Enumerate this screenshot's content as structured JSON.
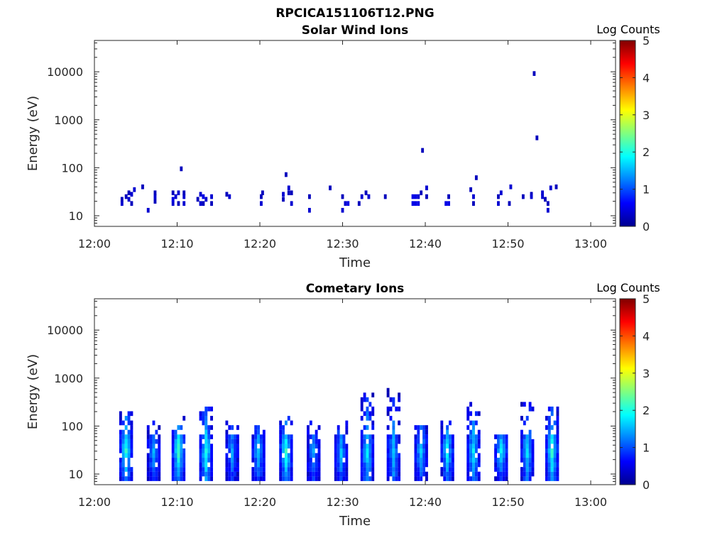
{
  "figure": {
    "main_title": "RPCICA151106T12.PNG"
  },
  "chart_data": [
    {
      "type": "heatmap",
      "title": "Solar Wind Ions",
      "xlabel": "Time",
      "ylabel": "Energy (eV)",
      "x_ticks": [
        "12:00",
        "12:10",
        "12:20",
        "12:30",
        "12:40",
        "12:50",
        "13:00"
      ],
      "y_ticks": [
        "10",
        "100",
        "1000",
        "10000"
      ],
      "y_scale": "log",
      "xlim": [
        "12:00",
        "13:03"
      ],
      "ylim": [
        6,
        45000
      ],
      "colorbar": {
        "label": "Log Counts",
        "ticks": [
          "0",
          "1",
          "2",
          "3",
          "4",
          "5"
        ],
        "range": [
          0,
          5
        ],
        "colormap": "jet"
      },
      "grid": false,
      "cells": [
        [
          "12:03:10",
          18,
          0.4
        ],
        [
          "12:03:10",
          22,
          0.3
        ],
        [
          "12:03:40",
          25,
          0.3
        ],
        [
          "12:04:00",
          22,
          0.4
        ],
        [
          "12:04:00",
          30,
          0.3
        ],
        [
          "12:04:20",
          28,
          0.4
        ],
        [
          "12:04:20",
          18,
          0.3
        ],
        [
          "12:04:40",
          35,
          0.4
        ],
        [
          "12:05:40",
          40,
          0.3
        ],
        [
          "12:06:20",
          13,
          0.4
        ],
        [
          "12:07:10",
          20,
          0.3
        ],
        [
          "12:07:10",
          25,
          0.4
        ],
        [
          "12:07:10",
          30,
          0.3
        ],
        [
          "12:09:20",
          18,
          0.4
        ],
        [
          "12:09:20",
          22,
          0.5
        ],
        [
          "12:09:20",
          30,
          0.3
        ],
        [
          "12:09:40",
          25,
          0.4
        ],
        [
          "12:10:00",
          18,
          0.3
        ],
        [
          "12:10:00",
          30,
          0.4
        ],
        [
          "12:10:20",
          95,
          0.3
        ],
        [
          "12:10:40",
          18,
          0.4
        ],
        [
          "12:10:40",
          25,
          0.4
        ],
        [
          "12:10:40",
          30,
          0.3
        ],
        [
          "12:12:20",
          22,
          0.3
        ],
        [
          "12:12:40",
          18,
          0.4
        ],
        [
          "12:12:40",
          28,
          0.4
        ],
        [
          "12:13:00",
          25,
          0.5
        ],
        [
          "12:13:00",
          18,
          0.3
        ],
        [
          "12:13:20",
          22,
          0.4
        ],
        [
          "12:14:00",
          18,
          0.3
        ],
        [
          "12:14:00",
          25,
          0.4
        ],
        [
          "12:15:50",
          28,
          0.3
        ],
        [
          "12:16:10",
          25,
          0.4
        ],
        [
          "12:20:00",
          18,
          0.4
        ],
        [
          "12:20:00",
          25,
          0.3
        ],
        [
          "12:20:10",
          30,
          0.3
        ],
        [
          "12:22:40",
          22,
          0.3
        ],
        [
          "12:22:40",
          28,
          0.4
        ],
        [
          "12:23:00",
          72,
          0.3
        ],
        [
          "12:23:20",
          30,
          0.3
        ],
        [
          "12:23:20",
          38,
          0.4
        ],
        [
          "12:23:40",
          18,
          0.4
        ],
        [
          "12:23:40",
          30,
          0.3
        ],
        [
          "12:25:50",
          13,
          0.4
        ],
        [
          "12:25:50",
          25,
          0.3
        ],
        [
          "12:28:20",
          38,
          0.3
        ],
        [
          "12:29:50",
          13,
          0.4
        ],
        [
          "12:29:50",
          25,
          0.3
        ],
        [
          "12:30:10",
          18,
          0.4
        ],
        [
          "12:30:30",
          18,
          0.5
        ],
        [
          "12:31:50",
          18,
          0.3
        ],
        [
          "12:32:10",
          25,
          0.4
        ],
        [
          "12:32:40",
          30,
          0.3
        ],
        [
          "12:33:00",
          25,
          0.4
        ],
        [
          "12:35:00",
          25,
          0.3
        ],
        [
          "12:38:20",
          18,
          0.5
        ],
        [
          "12:38:20",
          25,
          0.5
        ],
        [
          "12:38:40",
          18,
          0.5
        ],
        [
          "12:38:40",
          25,
          0.5
        ],
        [
          "12:39:00",
          18,
          0.5
        ],
        [
          "12:39:00",
          25,
          0.4
        ],
        [
          "12:39:20",
          30,
          0.3
        ],
        [
          "12:39:30",
          230,
          0.3
        ],
        [
          "12:40:00",
          38,
          0.4
        ],
        [
          "12:40:00",
          25,
          0.3
        ],
        [
          "12:42:20",
          18,
          0.5
        ],
        [
          "12:42:40",
          18,
          0.5
        ],
        [
          "12:42:40",
          25,
          0.3
        ],
        [
          "12:45:20",
          35,
          0.3
        ],
        [
          "12:45:40",
          25,
          0.4
        ],
        [
          "12:45:40",
          18,
          0.3
        ],
        [
          "12:46:00",
          62,
          0.3
        ],
        [
          "12:48:40",
          18,
          0.4
        ],
        [
          "12:48:40",
          25,
          0.3
        ],
        [
          "12:49:00",
          30,
          0.4
        ],
        [
          "12:50:00",
          18,
          0.3
        ],
        [
          "12:50:10",
          40,
          0.4
        ],
        [
          "12:51:40",
          25,
          0.3
        ],
        [
          "12:52:40",
          28,
          0.3
        ],
        [
          "12:52:40",
          25,
          0.4
        ],
        [
          "12:53:00",
          9200,
          0.3
        ],
        [
          "12:53:20",
          420,
          0.3
        ],
        [
          "12:54:00",
          25,
          0.4
        ],
        [
          "12:54:00",
          30,
          0.4
        ],
        [
          "12:54:20",
          22,
          0.3
        ],
        [
          "12:54:40",
          13,
          0.4
        ],
        [
          "12:54:40",
          18,
          0.3
        ],
        [
          "12:55:00",
          38,
          0.4
        ],
        [
          "12:55:40",
          40,
          0.3
        ]
      ]
    },
    {
      "type": "heatmap",
      "title": "Cometary Ions",
      "xlabel": "Time",
      "ylabel": "Energy (eV)",
      "x_ticks": [
        "12:00",
        "12:10",
        "12:20",
        "12:30",
        "12:40",
        "12:50",
        "13:00"
      ],
      "y_ticks": [
        "10",
        "100",
        "1000",
        "10000"
      ],
      "y_scale": "log",
      "xlim": [
        "12:00",
        "13:03"
      ],
      "ylim": [
        6,
        45000
      ],
      "colorbar": {
        "label": "Log Counts",
        "ticks": [
          "0",
          "1",
          "2",
          "3",
          "4",
          "5"
        ],
        "range": [
          0,
          5
        ],
        "colormap": "jet"
      },
      "grid": false,
      "bursts": [
        {
          "start": "12:03:00",
          "high_eV": 220,
          "peak": 1.9
        },
        {
          "start": "12:06:20",
          "high_eV": 120,
          "peak": 1.3
        },
        {
          "start": "12:09:20",
          "high_eV": 180,
          "peak": 2.0
        },
        {
          "start": "12:12:40",
          "high_eV": 300,
          "peak": 1.8
        },
        {
          "start": "12:15:50",
          "high_eV": 140,
          "peak": 1.2
        },
        {
          "start": "12:19:00",
          "high_eV": 110,
          "peak": 1.5
        },
        {
          "start": "12:22:20",
          "high_eV": 170,
          "peak": 1.9
        },
        {
          "start": "12:25:40",
          "high_eV": 130,
          "peak": 1.3
        },
        {
          "start": "12:29:00",
          "high_eV": 140,
          "peak": 1.4
        },
        {
          "start": "12:32:10",
          "high_eV": 500,
          "peak": 1.6
        },
        {
          "start": "12:35:20",
          "high_eV": 580,
          "peak": 1.4
        },
        {
          "start": "12:38:40",
          "high_eV": 110,
          "peak": 1.5
        },
        {
          "start": "12:41:50",
          "high_eV": 120,
          "peak": 1.7
        },
        {
          "start": "12:45:00",
          "high_eV": 330,
          "peak": 1.6
        },
        {
          "start": "12:48:20",
          "high_eV": 60,
          "peak": 1.7
        },
        {
          "start": "12:51:30",
          "high_eV": 340,
          "peak": 1.5
        },
        {
          "start": "12:54:30",
          "high_eV": 230,
          "peak": 1.9
        }
      ]
    }
  ]
}
